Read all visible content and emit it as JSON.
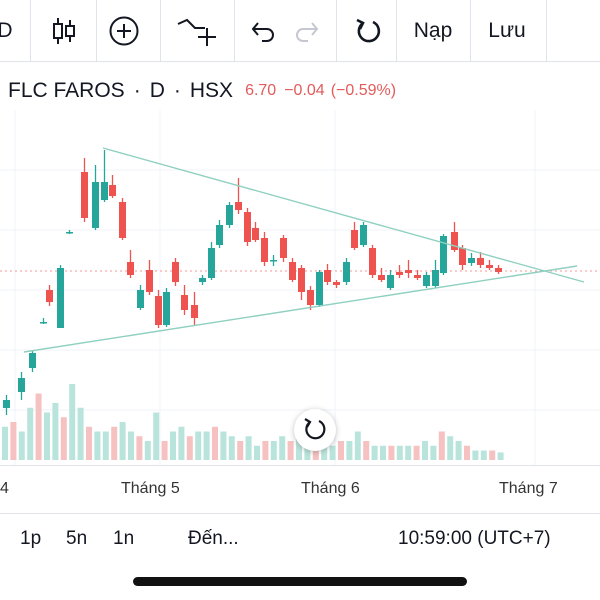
{
  "toolbar": {
    "partial_left_label": "D",
    "replay_label": "Nạp",
    "save_label": "Lưu",
    "icons": [
      "candlestick-icon",
      "add-indicator-icon",
      "compare-symbol-icon",
      "undo-icon",
      "redo-icon",
      "reload-icon"
    ]
  },
  "legend": {
    "symbol": "FLC FAROS",
    "sep1": "·",
    "interval": "D",
    "sep2": "·",
    "exchange": "HSX",
    "price": "6.70",
    "change": "−0.04",
    "change_percent": "(−0.59%)",
    "down_color": "#e35b5b"
  },
  "time_axis": {
    "labels": [
      "4",
      "Tháng 5",
      "Tháng 6",
      "Tháng 7"
    ]
  },
  "bottom_bar": {
    "range_1p": "1p",
    "range_5n": "5n",
    "range_1n": "1n",
    "goto_label": "Đến...",
    "clock": "10:59:00 (UTC+7)"
  },
  "chart_data": {
    "type": "candlestick",
    "colors": {
      "up": "#26a69a",
      "down": "#ef5350",
      "vol_up": "#b9e4dc",
      "vol_down": "#f6c1c1",
      "trendline": "#8fd0c0"
    },
    "volumes_relative": [
      0.35,
      0.4,
      0.3,
      0.55,
      0.7,
      0.5,
      0.6,
      0.45,
      0.8,
      0.55,
      0.35,
      0.3,
      0.3,
      0.35,
      0.4,
      0.3,
      0.25,
      0.2,
      0.5,
      0.2,
      0.3,
      0.35,
      0.25,
      0.3,
      0.3,
      0.35,
      0.3,
      0.25,
      0.2,
      0.25,
      0.15,
      0.2,
      0.2,
      0.25,
      0.2,
      0.25,
      0.25,
      0.2,
      0.15,
      0.15,
      0.2,
      0.2,
      0.3,
      0.2,
      0.15,
      0.15,
      0.15,
      0.15,
      0.15,
      0.15,
      0.2,
      0.15,
      0.3,
      0.25,
      0.2,
      0.15,
      0.1,
      0.1,
      0.1,
      0.08
    ]
  }
}
